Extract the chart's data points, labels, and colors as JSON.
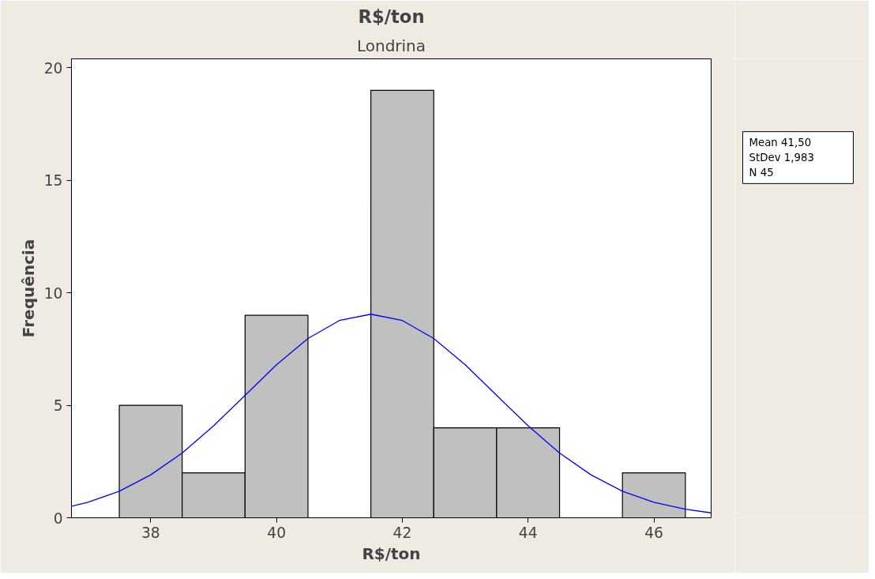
{
  "chart_data": {
    "type": "histogram",
    "title": "R$/ton",
    "subtitle": "Londrina",
    "xlabel": "R$/ton",
    "ylabel": "Frequência",
    "series": [
      {
        "bins": [
          37.5,
          38.5,
          39.5,
          40.5,
          41.5,
          42.5,
          43.5,
          44.5,
          45.5,
          46.5
        ],
        "values": [
          5,
          2,
          9,
          0,
          19,
          4,
          4,
          0,
          2
        ],
        "color": "#c0c0c0"
      },
      {
        "type": "line",
        "x": [
          36.74,
          37,
          37.5,
          38,
          38.5,
          39,
          39.5,
          40,
          40.5,
          41,
          41.5,
          42,
          42.5,
          43,
          43.5,
          44,
          44.5,
          45,
          45.5,
          46,
          46.5,
          46.91
        ],
        "values": [
          0.51,
          0.69,
          1.18,
          1.91,
          2.88,
          4.09,
          5.44,
          6.8,
          7.97,
          8.77,
          9.05,
          8.77,
          7.97,
          6.8,
          5.44,
          4.09,
          2.88,
          1.91,
          1.18,
          0.69,
          0.38,
          0.22
        ],
        "color": "#0000ff"
      }
    ],
    "xlim": [
      36.74,
      46.91
    ],
    "ylim": [
      0,
      20.4
    ],
    "xticks": [
      38,
      40,
      42,
      44,
      46
    ],
    "yticks": [
      0,
      5,
      10,
      15,
      20
    ],
    "grid": false,
    "annotations": [
      "Mean      41,50",
      "StDev    1,983",
      "N             45"
    ]
  }
}
